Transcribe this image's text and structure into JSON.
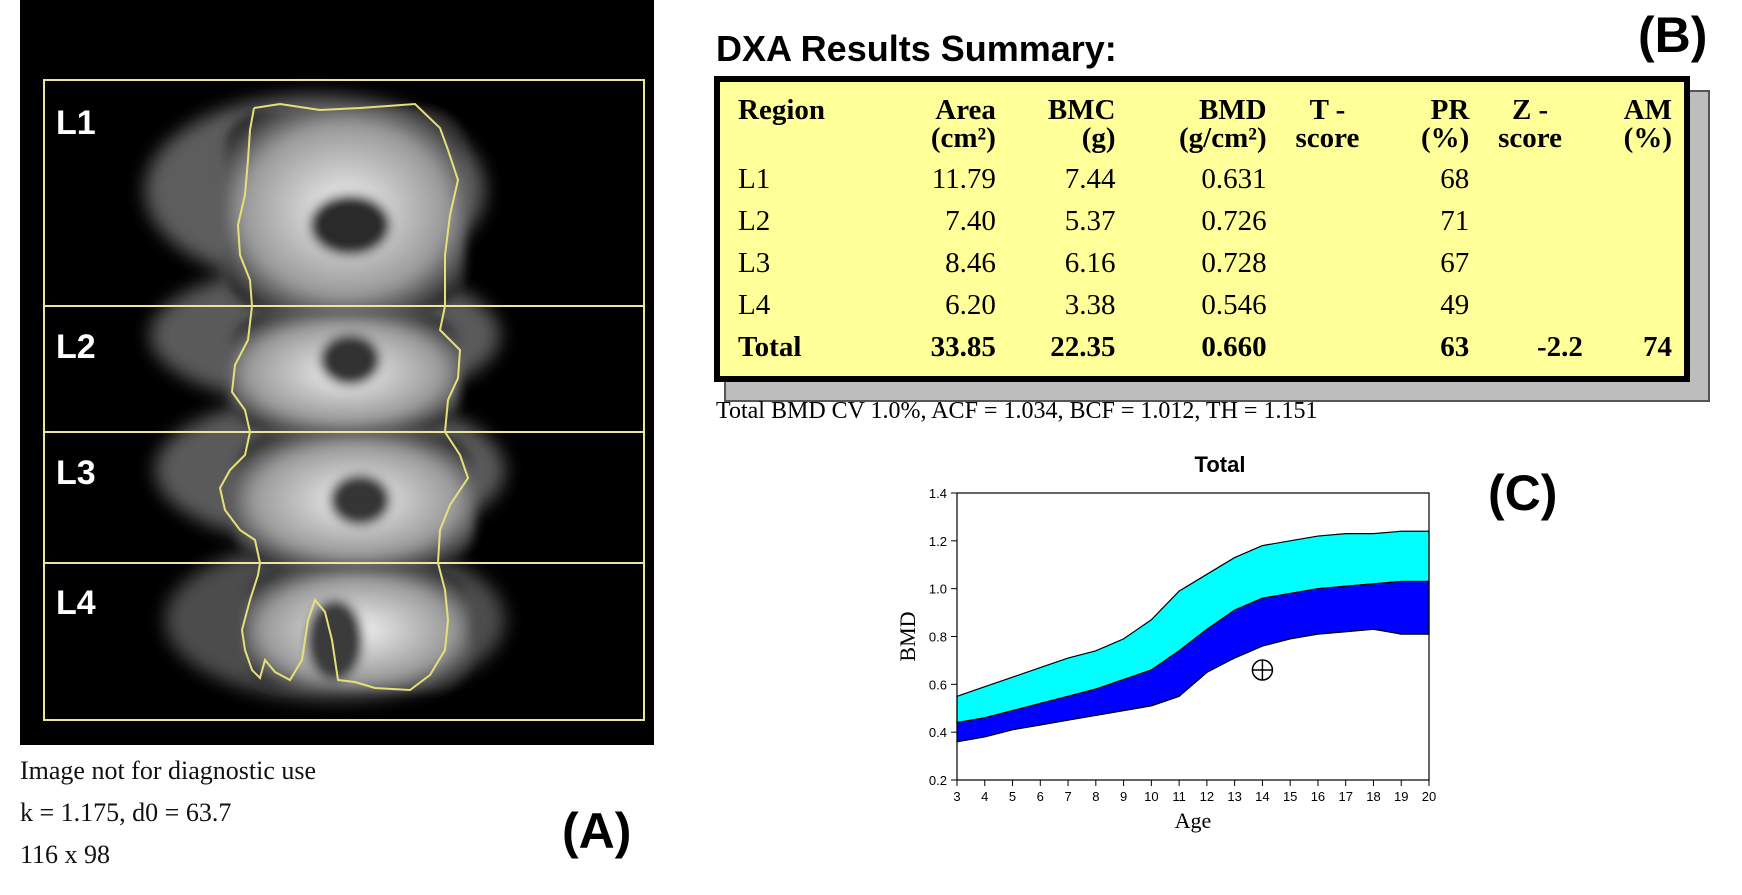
{
  "panel_a": {
    "label": "(A)",
    "vertebra_labels": [
      "L1",
      "L2",
      "L3",
      "L4"
    ],
    "caption_lines": [
      "Image not for diagnostic use",
      "k = 1.175, d0 = 63.7",
      "116 x 98"
    ]
  },
  "panel_b": {
    "label": "(B)",
    "title": "DXA Results Summary:",
    "headers": [
      [
        "Region",
        ""
      ],
      [
        "Area",
        "(cm²)"
      ],
      [
        "BMC",
        "(g)"
      ],
      [
        "BMD",
        "(g/cm²)"
      ],
      [
        "T -",
        "score"
      ],
      [
        "PR",
        "(%)"
      ],
      [
        "Z -",
        "score"
      ],
      [
        "AM",
        "(%)"
      ]
    ],
    "rows": [
      [
        "L1",
        "11.79",
        "7.44",
        "0.631",
        "",
        "68",
        "",
        ""
      ],
      [
        "L2",
        "7.40",
        "5.37",
        "0.726",
        "",
        "71",
        "",
        ""
      ],
      [
        "L3",
        "8.46",
        "6.16",
        "0.728",
        "",
        "67",
        "",
        ""
      ],
      [
        "L4",
        "6.20",
        "3.38",
        "0.546",
        "",
        "49",
        "",
        ""
      ],
      [
        "Total",
        "33.85",
        "22.35",
        "0.660",
        "",
        "63",
        "-2.2",
        "74"
      ]
    ],
    "footnote": "Total BMD CV 1.0%, ACF = 1.034, BCF = 1.012, TH = 1.151"
  },
  "panel_c": {
    "label": "(C)"
  },
  "chart_data": {
    "type": "area",
    "title": "Total",
    "xlabel": "Age",
    "ylabel": "BMD",
    "xlim": [
      3,
      20
    ],
    "ylim": [
      0.2,
      1.4
    ],
    "x_ticks": [
      3,
      4,
      5,
      6,
      7,
      8,
      9,
      10,
      11,
      12,
      13,
      14,
      15,
      16,
      17,
      18,
      19,
      20
    ],
    "y_ticks": [
      0.2,
      0.4,
      0.6,
      0.8,
      1.0,
      1.2,
      1.4
    ],
    "x": [
      3,
      4,
      5,
      6,
      7,
      8,
      9,
      10,
      11,
      12,
      13,
      14,
      15,
      16,
      17,
      18,
      19,
      20
    ],
    "bands": [
      {
        "color": "#00ffff",
        "upper": [
          0.55,
          0.59,
          0.63,
          0.67,
          0.71,
          0.74,
          0.79,
          0.87,
          0.99,
          1.06,
          1.13,
          1.18,
          1.2,
          1.22,
          1.23,
          1.23,
          1.24,
          1.24
        ],
        "lower": [
          0.44,
          0.46,
          0.49,
          0.52,
          0.55,
          0.58,
          0.62,
          0.66,
          0.74,
          0.83,
          0.91,
          0.96,
          0.98,
          1.0,
          1.01,
          1.02,
          1.03,
          1.03
        ]
      },
      {
        "color": "#0000ff",
        "upper": [
          0.44,
          0.46,
          0.49,
          0.52,
          0.55,
          0.58,
          0.62,
          0.66,
          0.74,
          0.83,
          0.91,
          0.96,
          0.98,
          1.0,
          1.01,
          1.02,
          1.03,
          1.03
        ],
        "lower": [
          0.36,
          0.38,
          0.41,
          0.43,
          0.45,
          0.47,
          0.49,
          0.51,
          0.55,
          0.65,
          0.71,
          0.76,
          0.79,
          0.81,
          0.82,
          0.83,
          0.81,
          0.81
        ]
      }
    ],
    "marker": {
      "x": 14.0,
      "y": 0.66
    },
    "grid": false,
    "tick_labels_y": [
      "0.2",
      "0.4",
      "0.6",
      "0.8",
      "1.0",
      "1.2",
      "1.4"
    ]
  }
}
